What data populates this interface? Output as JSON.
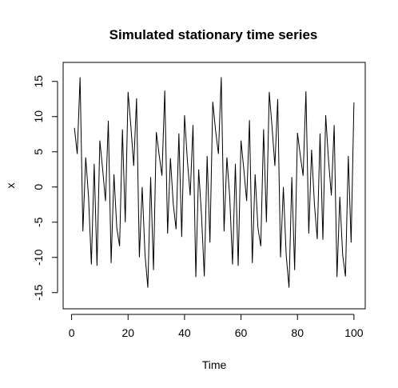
{
  "chart_data": {
    "type": "line",
    "title": "Simulated stationary time series",
    "xlabel": "Time",
    "ylabel": "x",
    "xlim": [
      -3,
      104
    ],
    "ylim": [
      -17.3,
      17.7
    ],
    "x_ticks": [
      0,
      20,
      40,
      60,
      80,
      100
    ],
    "y_ticks": [
      -15,
      -10,
      -5,
      0,
      5,
      10,
      15
    ],
    "grid": false,
    "series": [
      {
        "x": [
          1,
          2,
          3,
          4,
          5,
          6,
          7,
          8,
          9,
          10,
          11,
          12,
          13,
          14,
          15,
          16,
          17,
          18,
          19,
          20,
          21,
          22,
          23,
          24,
          25,
          26,
          27,
          28,
          29,
          30,
          31,
          32,
          33,
          34,
          35,
          36,
          37,
          38,
          39,
          40,
          41,
          42,
          43,
          44,
          45,
          46,
          47,
          48,
          49,
          50,
          51,
          52,
          53,
          54,
          55,
          56,
          57,
          58,
          59,
          60,
          61,
          62,
          63,
          64,
          65,
          66,
          67,
          68,
          69,
          70,
          71,
          72,
          73,
          74,
          75,
          76,
          77,
          78,
          79,
          80,
          81,
          82,
          83,
          84,
          85,
          86,
          87,
          88,
          89,
          90,
          91,
          92,
          93,
          94,
          95,
          96,
          97,
          98,
          99,
          100
        ],
        "values": [
          8.4,
          4.7,
          15.6,
          -6.3,
          4.2,
          -1.4,
          -11.0,
          3.3,
          -11.2,
          6.6,
          2.5,
          -2.0,
          9.4,
          -10.8,
          1.8,
          -5.8,
          -8.4,
          8.2,
          -5.0,
          13.5,
          8.6,
          3.0,
          12.6,
          -10.0,
          0.0,
          -9.6,
          -14.3,
          1.4,
          -11.8,
          7.8,
          4.6,
          1.6,
          13.7,
          -6.6,
          4.1,
          -2.4,
          -6.0,
          7.6,
          -7.1,
          10.2,
          3.8,
          -1.2,
          8.8,
          -12.8,
          2.5,
          -3.9,
          -12.7,
          4.4,
          -7.9,
          12.1,
          8.0,
          4.7,
          15.6,
          -6.3,
          4.2,
          -1.4,
          -11.0,
          3.3,
          -11.2,
          6.6,
          2.5,
          -2.0,
          9.5,
          -10.8,
          1.8,
          -5.8,
          -8.4,
          8.2,
          -5.0,
          13.5,
          8.5,
          3.0,
          12.5,
          -10.0,
          0.0,
          -9.6,
          -14.3,
          1.4,
          -11.8,
          7.7,
          4.5,
          1.6,
          13.6,
          -6.6,
          5.3,
          -2.4,
          -7.4,
          7.6,
          -7.5,
          10.2,
          3.8,
          -1.2,
          8.8,
          -12.8,
          -1.4,
          -9.6,
          -12.7,
          4.4,
          -7.9,
          12.0
        ]
      }
    ]
  }
}
